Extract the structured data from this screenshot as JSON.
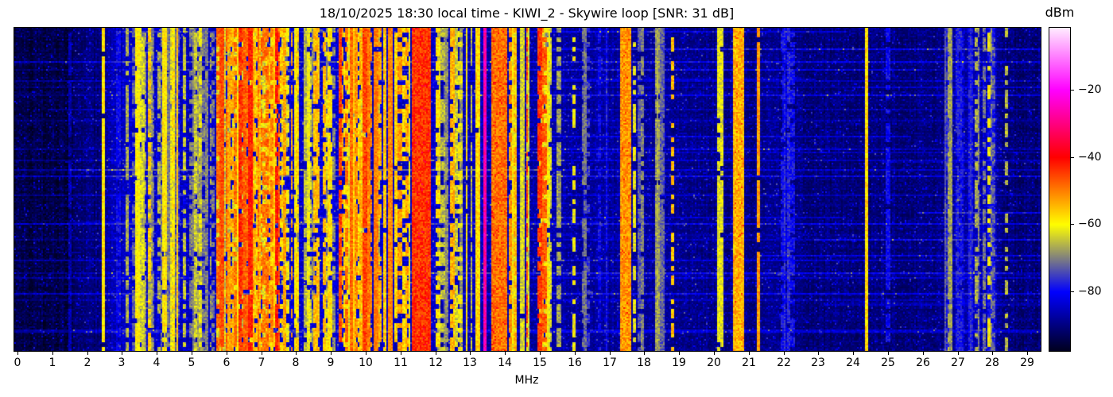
{
  "chart_data": {
    "type": "heatmap",
    "title": "18/10/2025 18:30 local time - KIWI_2 - Skywire loop [SNR: 31 dB]",
    "xlabel": "MHz",
    "colorbar_label": "dBm",
    "x_range_mhz": [
      0,
      29.45
    ],
    "x_ticks": [
      0,
      1,
      2,
      3,
      4,
      5,
      6,
      7,
      8,
      9,
      10,
      11,
      12,
      13,
      14,
      15,
      16,
      17,
      18,
      19,
      20,
      21,
      22,
      23,
      24,
      25,
      26,
      27,
      28,
      29
    ],
    "colorbar_ticks": [
      {
        "dbm": -20,
        "label": "−20"
      },
      {
        "dbm": -40,
        "label": "−40"
      },
      {
        "dbm": -60,
        "label": "−60"
      },
      {
        "dbm": -80,
        "label": "−80"
      }
    ],
    "colorbar_display_range_dbm": [
      -97.4,
      -1.6
    ],
    "colormap": [
      {
        "dbm": -100,
        "color": "#000000"
      },
      {
        "dbm": -80,
        "color": "#0000ff"
      },
      {
        "dbm": -60,
        "color": "#ffff00"
      },
      {
        "dbm": -40,
        "color": "#ff0000"
      },
      {
        "dbm": -20,
        "color": "#ff00ff"
      },
      {
        "dbm": 0,
        "color": "#ffffff"
      }
    ],
    "noise_floor_dbm": [
      [
        0.0,
        -96
      ],
      [
        1.5,
        -96
      ],
      [
        1.65,
        -93
      ],
      [
        2.4,
        -92
      ],
      [
        2.6,
        -88
      ],
      [
        3.2,
        -86
      ],
      [
        5.0,
        -86
      ],
      [
        8.0,
        -85
      ],
      [
        11.0,
        -86
      ],
      [
        12.0,
        -87
      ],
      [
        16.1,
        -89
      ],
      [
        18.6,
        -90
      ],
      [
        19.5,
        -91
      ],
      [
        21.5,
        -91
      ],
      [
        23.0,
        -92
      ],
      [
        26.5,
        -92
      ],
      [
        26.7,
        -88
      ],
      [
        28.05,
        -88
      ],
      [
        28.3,
        -93
      ],
      [
        29.45,
        -92
      ]
    ],
    "activity_bands": [
      {
        "from": 3.15,
        "to": 4.65,
        "stripes": 26,
        "dbm_min": -76,
        "dbm_max": -54
      },
      {
        "from": 4.65,
        "to": 5.65,
        "stripes": 10,
        "dbm_min": -78,
        "dbm_max": -60
      },
      {
        "from": 5.7,
        "to": 6.35,
        "stripes": 16,
        "dbm_min": -66,
        "dbm_max": -46
      },
      {
        "from": 6.35,
        "to": 7.55,
        "stripes": 28,
        "dbm_min": -64,
        "dbm_max": -42
      },
      {
        "from": 7.55,
        "to": 8.15,
        "stripes": 10,
        "dbm_min": -70,
        "dbm_max": -52
      },
      {
        "from": 8.25,
        "to": 9.1,
        "stripes": 12,
        "dbm_min": -72,
        "dbm_max": -54
      },
      {
        "from": 9.25,
        "to": 10.15,
        "stripes": 20,
        "dbm_min": -64,
        "dbm_max": -44
      },
      {
        "from": 10.25,
        "to": 11.25,
        "stripes": 14,
        "dbm_min": -70,
        "dbm_max": -50
      },
      {
        "from": 12.05,
        "to": 13.35,
        "stripes": 16,
        "dbm_min": -72,
        "dbm_max": -52
      },
      {
        "from": 14.1,
        "to": 15.15,
        "stripes": 13,
        "dbm_min": -66,
        "dbm_max": -44
      },
      {
        "from": 15.2,
        "to": 15.6,
        "stripes": 5,
        "dbm_min": -72,
        "dbm_max": -58
      },
      {
        "from": 16.2,
        "to": 17.2,
        "stripes": 6,
        "dbm_min": -82,
        "dbm_max": -70
      },
      {
        "from": 17.7,
        "to": 18.6,
        "stripes": 6,
        "dbm_min": -80,
        "dbm_max": -66
      },
      {
        "from": 21.4,
        "to": 22.3,
        "stripes": 6,
        "dbm_min": -84,
        "dbm_max": -72
      },
      {
        "from": 26.6,
        "to": 28.05,
        "stripes": 18,
        "dbm_min": -82,
        "dbm_max": -66
      }
    ],
    "strong_bands": [
      {
        "from": 11.32,
        "to": 11.85,
        "dbm": -44
      },
      {
        "from": 13.6,
        "to": 14.05,
        "dbm": -49
      },
      {
        "from": 17.3,
        "to": 17.62,
        "dbm": -52
      },
      {
        "from": 20.55,
        "to": 20.85,
        "dbm": -54
      }
    ],
    "carriers": [
      {
        "mhz": 1.5,
        "dbm": -86,
        "duty": 0.9
      },
      {
        "mhz": 2.48,
        "dbm": -58,
        "duty": 0.95
      },
      {
        "mhz": 2.9,
        "dbm": -80,
        "duty": 0.8
      },
      {
        "mhz": 13.41,
        "dbm": -27,
        "duty": 1.0
      },
      {
        "mhz": 15.98,
        "dbm": -60,
        "duty": 0.5
      },
      {
        "mhz": 17.73,
        "dbm": -62,
        "duty": 0.55
      },
      {
        "mhz": 18.82,
        "dbm": -55,
        "duty": 0.45
      },
      {
        "mhz": 20.12,
        "dbm": -62,
        "duty": 0.9
      },
      {
        "mhz": 20.24,
        "dbm": -62,
        "duty": 0.9
      },
      {
        "mhz": 21.28,
        "dbm": -52,
        "duty": 0.95
      },
      {
        "mhz": 24.37,
        "dbm": -57,
        "duty": 1.0
      },
      {
        "mhz": 25.0,
        "dbm": -80,
        "duty": 0.8
      },
      {
        "mhz": 27.9,
        "dbm": -60,
        "duty": 0.45
      },
      {
        "mhz": 28.42,
        "dbm": -66,
        "duty": 0.4
      }
    ],
    "time_rows": {
      "streak_probability": 0.18,
      "streak_boost_dbm": [
        3,
        12
      ]
    }
  }
}
